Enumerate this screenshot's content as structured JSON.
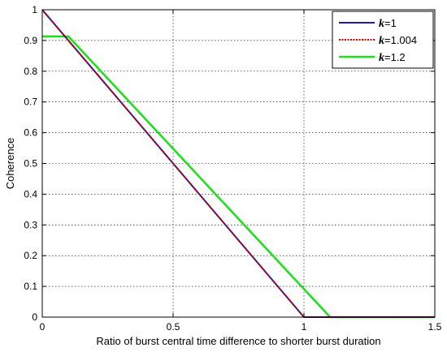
{
  "chart_data": {
    "type": "line",
    "title": "",
    "xlabel": "Ratio of burst central time difference to shorter burst duration",
    "ylabel": "Coherence",
    "xlim": [
      0,
      1.5
    ],
    "ylim": [
      0,
      1
    ],
    "xticks": [
      0,
      0.5,
      1,
      1.5
    ],
    "xtick_labels": [
      "0",
      "0.5",
      "1",
      "1.5"
    ],
    "yticks": [
      0,
      0.1,
      0.2,
      0.3,
      0.4,
      0.5,
      0.6,
      0.7,
      0.8,
      0.9,
      1
    ],
    "ytick_labels": [
      "0",
      "0.1",
      "0.2",
      "0.3",
      "0.4",
      "0.5",
      "0.6",
      "0.7",
      "0.8",
      "0.9",
      "1"
    ],
    "grid": true,
    "legend_position": "top-right",
    "series": [
      {
        "name": "k=1",
        "name_var": "k",
        "name_value": "=1",
        "color": "#1f1f9e",
        "style": "solid",
        "x": [
          0,
          1.0,
          1.5
        ],
        "y": [
          1.0,
          0.0,
          0.0
        ]
      },
      {
        "name": "k=1.004",
        "name_var": "k",
        "name_value": "=1.004",
        "color": "#cc0000",
        "style": "dotted",
        "x": [
          0,
          1.0,
          1.5
        ],
        "y": [
          0.999,
          0.0,
          0.0
        ]
      },
      {
        "name": "k=1.2",
        "name_var": "k",
        "name_value": "=1.2",
        "color": "#22dd22",
        "style": "solid",
        "x": [
          0,
          0.1,
          1.1,
          1.5
        ],
        "y": [
          0.913,
          0.913,
          0.0,
          0.0
        ]
      }
    ]
  }
}
